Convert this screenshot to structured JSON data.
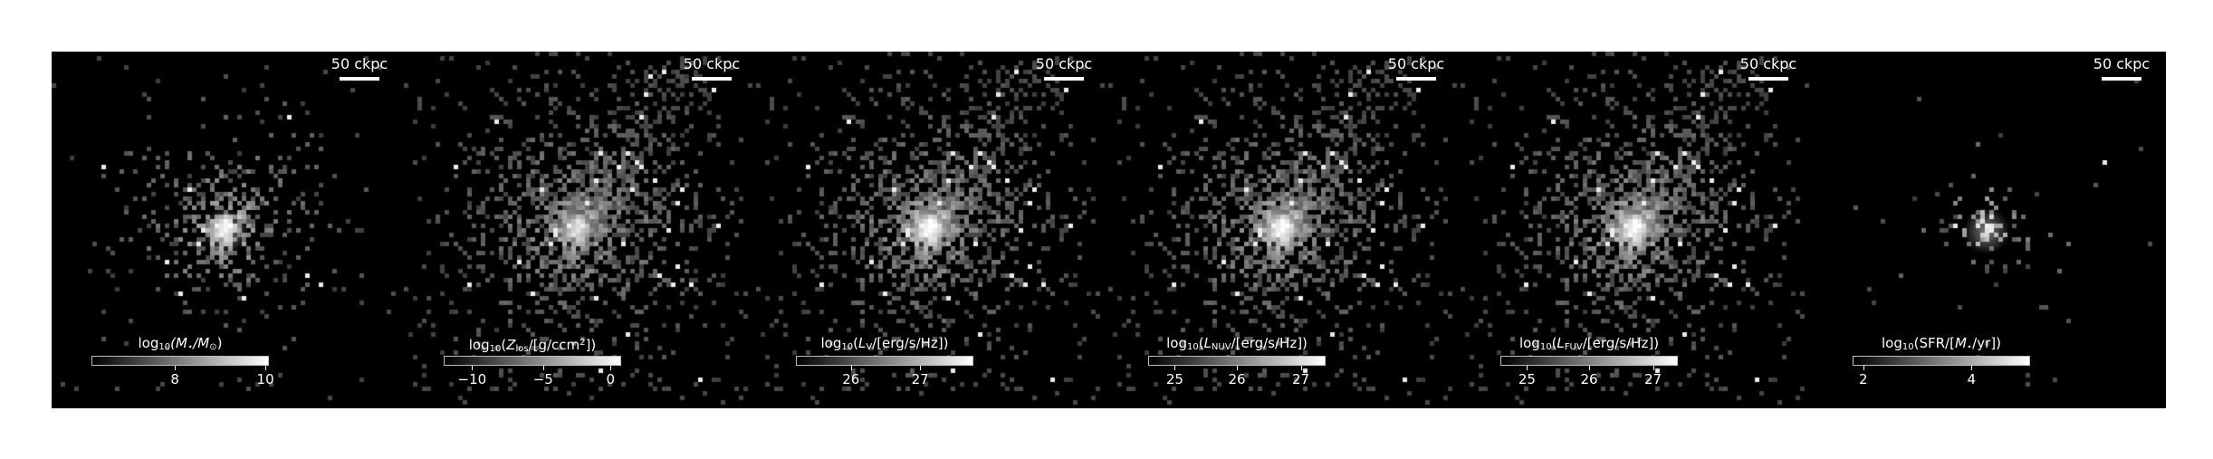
{
  "panels": [
    {
      "id": "stellar-mass",
      "scale_label": "50 ckpc",
      "cbar_label": {
        "pre": "log",
        "sub": "10",
        "mid": "(",
        "var": "M",
        "varsub": "⋆",
        "after": "/",
        "unit": "M",
        "unitsub": "⊙",
        "post": ")"
      },
      "ticks": [
        {
          "label": "8",
          "frac": 0.47
        },
        {
          "label": "10",
          "frac": 0.98
        }
      ],
      "image": {
        "spread": 0.55,
        "glow": 0.5,
        "sparse": 0.25
      }
    },
    {
      "id": "metallicity",
      "scale_label": "50 ckpc",
      "cbar_label_text": "log",
      "cbar_label_sub": "10",
      "ticks": [
        {
          "label": "−10",
          "frac": 0.16
        },
        {
          "label": "−5",
          "frac": 0.56
        },
        {
          "label": "0",
          "frac": 0.94
        }
      ],
      "image": {
        "spread": 1.0,
        "glow": 0.35,
        "sparse": 0.85
      }
    },
    {
      "id": "v-band",
      "scale_label": "50 ckpc",
      "ticks": [
        {
          "label": "26",
          "frac": 0.31
        },
        {
          "label": "27",
          "frac": 0.7
        }
      ],
      "image": {
        "spread": 1.0,
        "glow": 0.6,
        "sparse": 0.75
      }
    },
    {
      "id": "nuv",
      "scale_label": "50 ckpc",
      "ticks": [
        {
          "label": "25",
          "frac": 0.15
        },
        {
          "label": "26",
          "frac": 0.5
        },
        {
          "label": "27",
          "frac": 0.86
        }
      ],
      "image": {
        "spread": 1.0,
        "glow": 0.55,
        "sparse": 0.75
      }
    },
    {
      "id": "fuv",
      "scale_label": "50 ckpc",
      "ticks": [
        {
          "label": "25",
          "frac": 0.15
        },
        {
          "label": "26",
          "frac": 0.5
        },
        {
          "label": "27",
          "frac": 0.86
        }
      ],
      "image": {
        "spread": 1.0,
        "glow": 0.55,
        "sparse": 0.75
      }
    },
    {
      "id": "sfr",
      "scale_label": "50 ckpc",
      "ticks": [
        {
          "label": "2",
          "frac": 0.06
        },
        {
          "label": "4",
          "frac": 0.67
        }
      ],
      "image": {
        "spread": 0.2,
        "glow": 0.45,
        "sparse": 0.05
      }
    }
  ],
  "labels": {
    "p0": {
      "a": "log",
      "b": "10",
      "c": "(M",
      "d": "⋆",
      "e": "/M",
      "f": "⊙",
      "g": ")"
    },
    "p1": {
      "a": "log",
      "b": "10",
      "c": "(Z",
      "d": "los",
      "e": "/[g/ccm",
      "f": "2",
      "g": "])"
    },
    "p2": {
      "a": "log",
      "b": "10",
      "c": "(L",
      "d": "V",
      "e": "/[erg/s/Hz])"
    },
    "p3": {
      "a": "log",
      "b": "10",
      "c": "(L",
      "d": "NUV",
      "e": "/[erg/s/Hz])"
    },
    "p4": {
      "a": "log",
      "b": "10",
      "c": "(L",
      "d": "FUV",
      "e": "/[erg/s/Hz])"
    },
    "p5": {
      "a": "log",
      "b": "10",
      "c": "(SFR/[M",
      "d": "⋆",
      "e": "/yr])"
    }
  }
}
